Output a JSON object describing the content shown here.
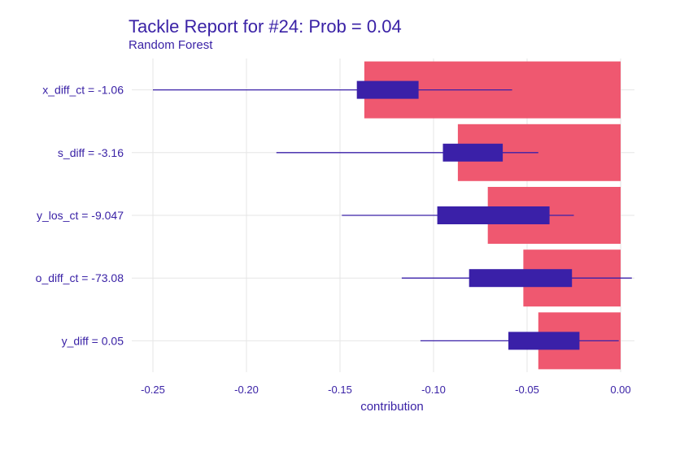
{
  "chart_data": {
    "type": "bar",
    "title": "Tackle Report for #24: Prob = 0.04",
    "subtitle": "Random Forest",
    "xlabel": "contribution",
    "xlim": [
      -0.26,
      0.005
    ],
    "xticks": [
      -0.25,
      -0.2,
      -0.15,
      -0.1,
      -0.05,
      0.0
    ],
    "xtick_labels": [
      "-0.25",
      "-0.20",
      "-0.15",
      "-0.10",
      "-0.05",
      "0.00"
    ],
    "grid": true,
    "colors": {
      "bar": "#ef5870",
      "box": "#3a20a8",
      "whisker": "#3a20a8",
      "text": "#3a22a6"
    },
    "categories": [
      "x_diff_ct = -1.06",
      "s_diff = -3.16",
      "y_los_ct = -9.047",
      "o_diff_ct = -73.08",
      "y_diff = 0.05"
    ],
    "values": [
      -0.137,
      -0.087,
      -0.071,
      -0.052,
      -0.044
    ],
    "boxplots": [
      {
        "min": -0.25,
        "q1": -0.141,
        "q3": -0.108,
        "max": -0.058
      },
      {
        "min": -0.184,
        "q1": -0.095,
        "q3": -0.063,
        "max": -0.044
      },
      {
        "min": -0.149,
        "q1": -0.098,
        "q3": -0.038,
        "max": -0.025
      },
      {
        "min": -0.117,
        "q1": -0.081,
        "q3": -0.026,
        "max": 0.006
      },
      {
        "min": -0.107,
        "q1": -0.06,
        "q3": -0.022,
        "max": -0.001
      }
    ]
  }
}
